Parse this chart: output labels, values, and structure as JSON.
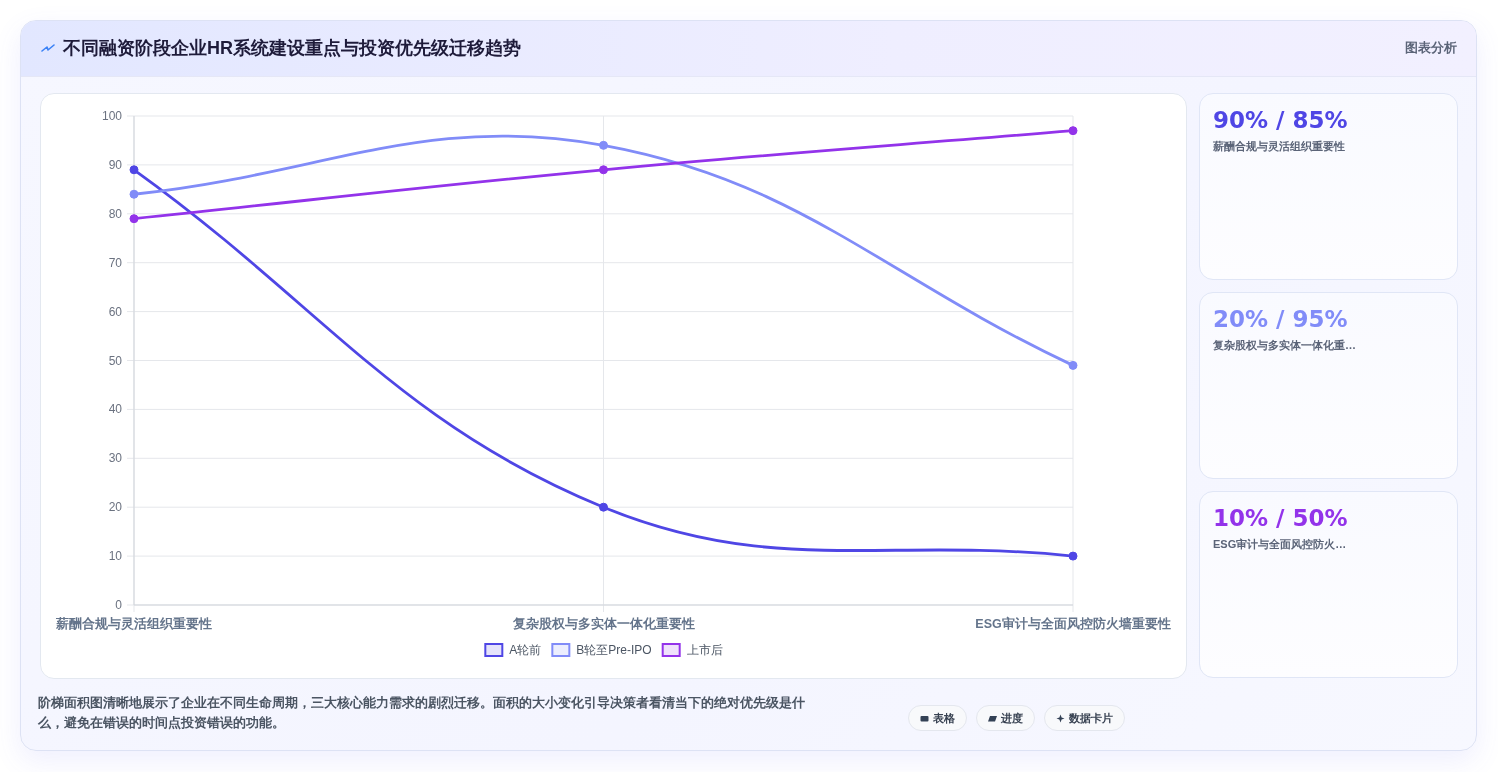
{
  "chart_data": [
    {
      "type": "line",
      "title": "不同融资阶段企业HR系统建设重点与投资优先级迁移趋势",
      "categories": [
        "薪酬合规与灵活组织重要性",
        "复杂股权与多实体一体化重要性",
        "ESG审计与全面风控防火墙重要性"
      ],
      "series": [
        {
          "name": "A轮前",
          "color": "#4f46e5",
          "values": [
            89,
            20,
            10
          ]
        },
        {
          "name": "B轮至Pre-IPO",
          "color": "#818cf8",
          "values": [
            84,
            94,
            49
          ]
        },
        {
          "name": "上市后",
          "color": "#9333ea",
          "values": [
            79,
            89,
            97
          ]
        }
      ],
      "ylim": [
        0,
        100
      ],
      "yticks": [
        0,
        10,
        20,
        30,
        40,
        50,
        60,
        70,
        80,
        90,
        100
      ],
      "grid": true,
      "legend": "bottom",
      "marker": "circle",
      "annotations": [
        "图表分析",
        "阶梯面积图清晰地展示了企业在不同生命周期，三大核心能力需求的剧烈迁移。面积的大小变化引导决策者看清当下的绝对优先级是什么，避免在错误的时间点投资错误的功能。",
        "表格",
        "进度",
        "数据卡片"
      ]
    },
    {
      "type": "other",
      "annotations": [
        "90% / 85%",
        "薪酬合规与灵活组织重要性",
        "20% / 95%",
        "复杂股权与多实体一体化重…",
        "10% / 50%",
        "ESG审计与全面风控防火…"
      ],
      "colors": [
        "#4f46e5",
        "#818cf8",
        "#9333ea"
      ]
    }
  ]
}
